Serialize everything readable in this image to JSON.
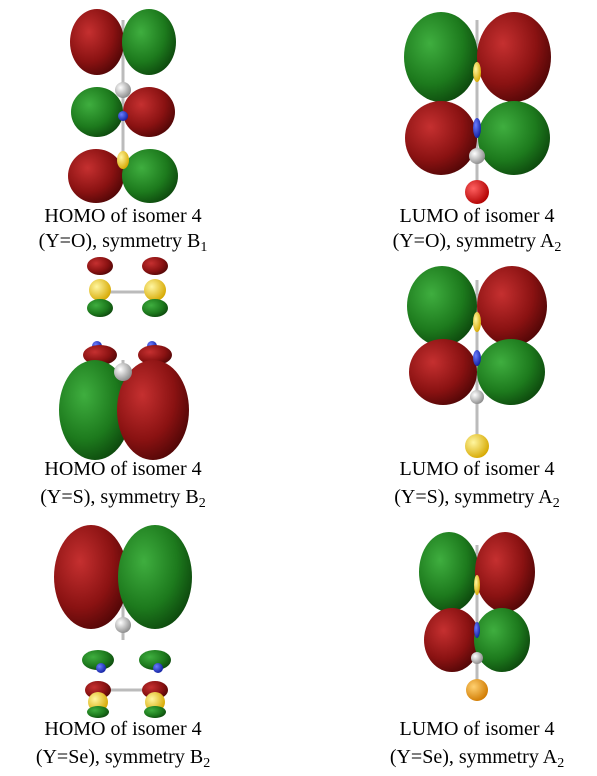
{
  "panels": [
    {
      "title": "HOMO of isomer 4",
      "detail": "(Y=O), symmetry B",
      "subscript": "1"
    },
    {
      "title": "LUMO of isomer 4",
      "detail": "(Y=O), symmetry A",
      "subscript": "2"
    },
    {
      "title": "HOMO of isomer 4",
      "detail": "(Y=S), symmetry B",
      "subscript": "2"
    },
    {
      "title": "LUMO of isomer 4",
      "detail": "(Y=S), symmetry A",
      "subscript": "2"
    },
    {
      "title": "HOMO of isomer 4",
      "detail": "(Y=Se), symmetry B",
      "subscript": "2"
    },
    {
      "title": "LUMO of isomer 4",
      "detail": "(Y=Se), symmetry A",
      "subscript": "2"
    }
  ]
}
